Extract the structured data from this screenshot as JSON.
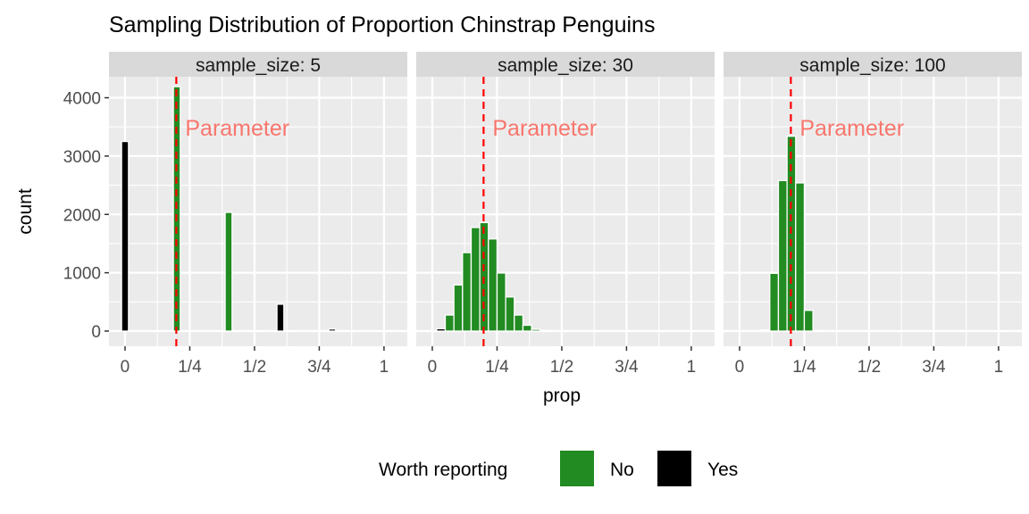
{
  "chart_data": [
    {
      "type": "bar",
      "title": "Sampling Distribution of Proportion Chinstrap Penguins",
      "panel": "sample_size: 5",
      "xlabel": "prop",
      "ylabel": "count",
      "xlim": [
        -0.062,
        1.09
      ],
      "ylim": [
        -260,
        4360
      ],
      "xticks": [
        0,
        0.25,
        0.5,
        0.75,
        1
      ],
      "xtick_labels": [
        "0",
        "1/4",
        "1/2",
        "3/4",
        "1"
      ],
      "yticks": [
        0,
        1000,
        2000,
        3000,
        4000
      ],
      "ytick_labels": [
        "0",
        "1000",
        "2000",
        "3000",
        "4000"
      ],
      "binwidth": 0.0333,
      "parameter": 0.198,
      "parameter_label": "Parameter",
      "bars": [
        {
          "x": 0.0,
          "count": 3250,
          "worth_reporting": "Yes"
        },
        {
          "x": 0.2,
          "count": 4190,
          "worth_reporting": "No"
        },
        {
          "x": 0.4,
          "count": 2035,
          "worth_reporting": "No"
        },
        {
          "x": 0.6,
          "count": 460,
          "worth_reporting": "Yes"
        },
        {
          "x": 0.8,
          "count": 35,
          "worth_reporting": "Yes"
        },
        {
          "x": 1.0,
          "count": 2,
          "worth_reporting": "Yes"
        }
      ]
    },
    {
      "type": "bar",
      "panel": "sample_size: 30",
      "parameter": 0.198,
      "parameter_label": "Parameter",
      "bars": [
        {
          "x": 0.0,
          "count": 5,
          "worth_reporting": "Yes"
        },
        {
          "x": 0.0333,
          "count": 40,
          "worth_reporting": "Yes"
        },
        {
          "x": 0.0667,
          "count": 275,
          "worth_reporting": "No"
        },
        {
          "x": 0.1,
          "count": 790,
          "worth_reporting": "No"
        },
        {
          "x": 0.1333,
          "count": 1345,
          "worth_reporting": "No"
        },
        {
          "x": 0.1667,
          "count": 1775,
          "worth_reporting": "No"
        },
        {
          "x": 0.2,
          "count": 1860,
          "worth_reporting": "No"
        },
        {
          "x": 0.2333,
          "count": 1580,
          "worth_reporting": "No"
        },
        {
          "x": 0.2667,
          "count": 995,
          "worth_reporting": "No"
        },
        {
          "x": 0.3,
          "count": 585,
          "worth_reporting": "No"
        },
        {
          "x": 0.3333,
          "count": 275,
          "worth_reporting": "No"
        },
        {
          "x": 0.3667,
          "count": 100,
          "worth_reporting": "No"
        },
        {
          "x": 0.4,
          "count": 30,
          "worth_reporting": "No"
        },
        {
          "x": 0.4333,
          "count": 12,
          "worth_reporting": "Yes"
        }
      ]
    },
    {
      "type": "bar",
      "panel": "sample_size: 100",
      "parameter": 0.198,
      "parameter_label": "Parameter",
      "bars": [
        {
          "x": 0.1,
          "count": 20,
          "worth_reporting": "No"
        },
        {
          "x": 0.1333,
          "count": 990,
          "worth_reporting": "No"
        },
        {
          "x": 0.1667,
          "count": 2580,
          "worth_reporting": "No"
        },
        {
          "x": 0.2,
          "count": 3340,
          "worth_reporting": "No"
        },
        {
          "x": 0.2333,
          "count": 2540,
          "worth_reporting": "No"
        },
        {
          "x": 0.2667,
          "count": 355,
          "worth_reporting": "No"
        },
        {
          "x": 0.3,
          "count": 10,
          "worth_reporting": "No"
        }
      ]
    }
  ],
  "legend": {
    "title": "Worth reporting",
    "placement": "bottom",
    "items": [
      {
        "label": "No",
        "color": "#228B22"
      },
      {
        "label": "Yes",
        "color": "#000000"
      }
    ]
  },
  "colors": {
    "panel_bg": "#EBEBEB",
    "strip_bg": "#D9D9D9",
    "grid": "#FFFFFF",
    "parameter_line": "#FF0000",
    "parameter_text": "#F8766D"
  }
}
